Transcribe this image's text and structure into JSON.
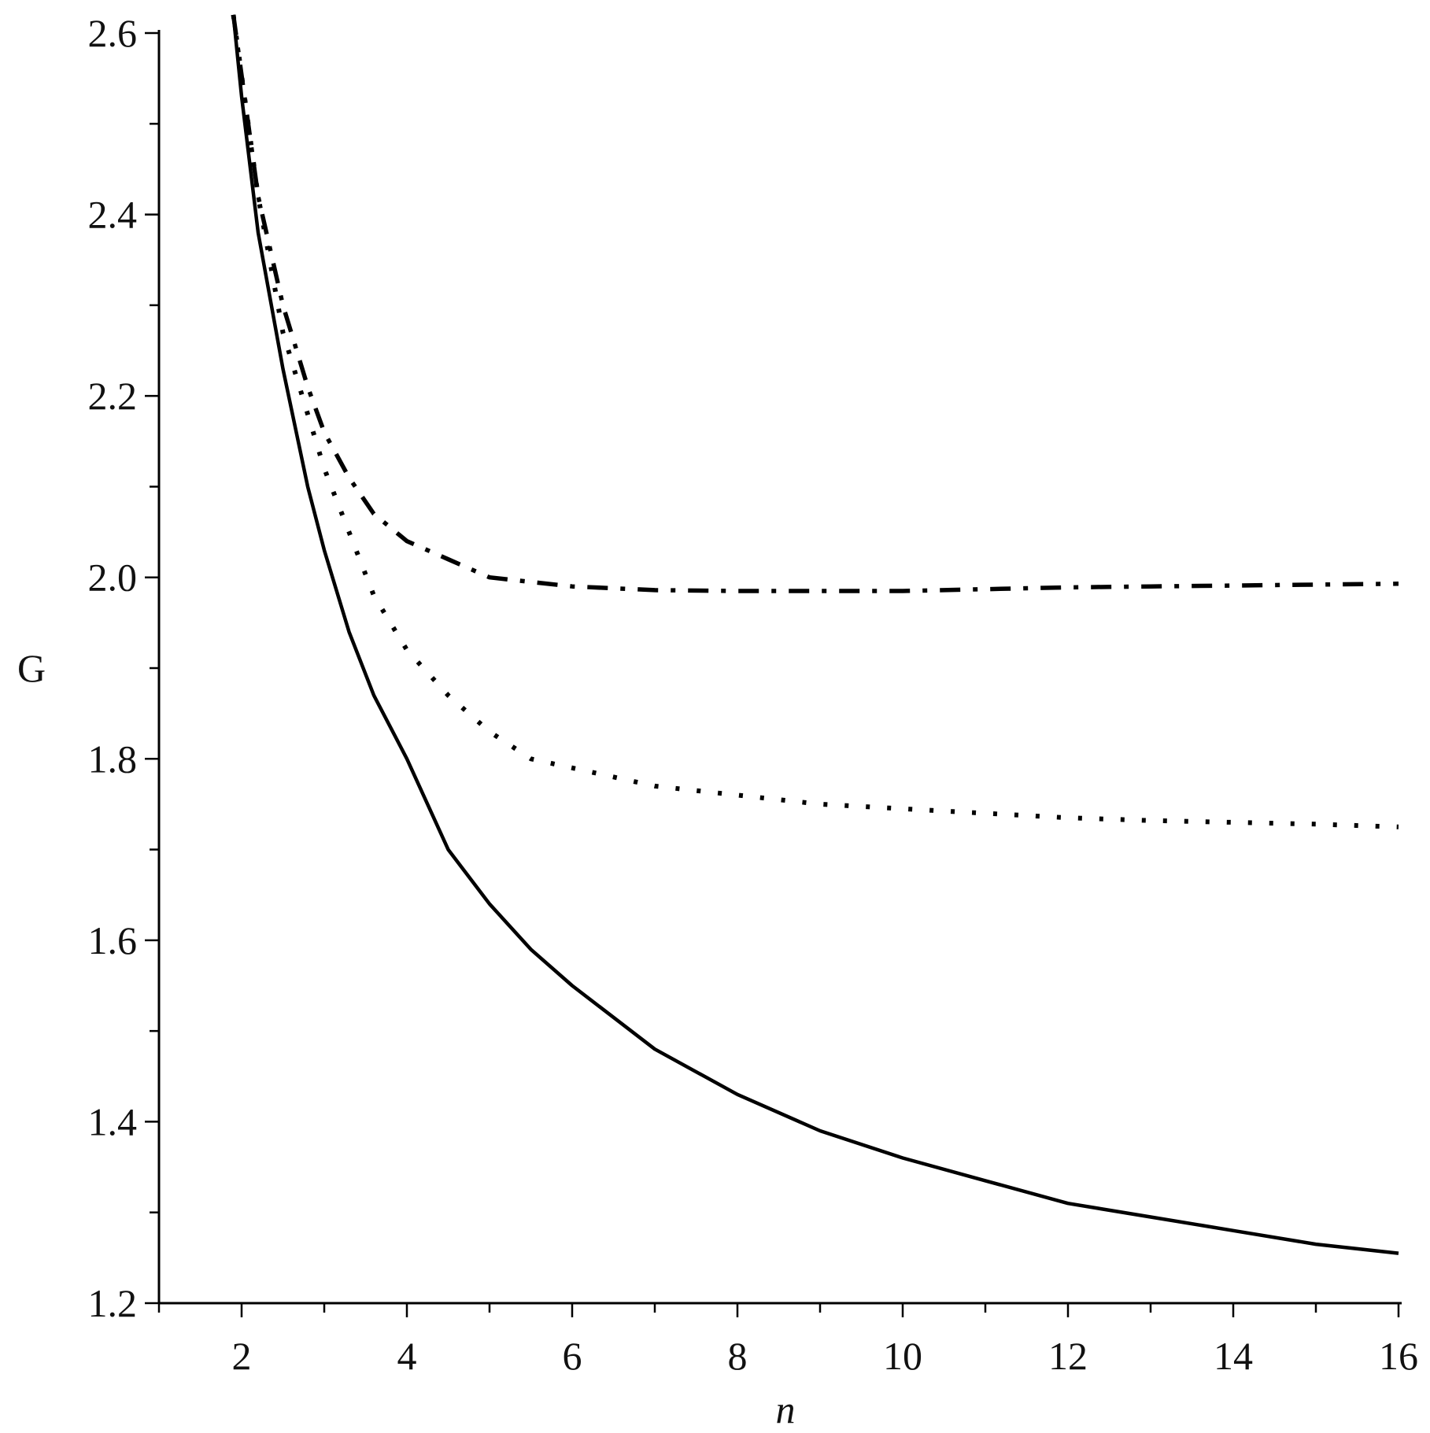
{
  "chart_data": {
    "type": "line",
    "title": "",
    "xlabel": "n",
    "ylabel": "G",
    "xlim": [
      1,
      16
    ],
    "ylim": [
      1.2,
      2.6
    ],
    "x_ticks": [
      "2",
      "4",
      "6",
      "8",
      "10",
      "12",
      "14",
      "16"
    ],
    "y_ticks": [
      "1.2",
      "1.4",
      "1.6",
      "1.8",
      "2.0",
      "2.2",
      "2.4",
      "2.6"
    ],
    "grid": false,
    "legend": "none",
    "colors": {
      "axis": "#000000",
      "line": "#000000",
      "tick_label": "#111111"
    },
    "series": [
      {
        "style": "solid",
        "x": [
          1.9,
          2.0,
          2.2,
          2.5,
          2.8,
          3.0,
          3.3,
          3.6,
          4.0,
          4.5,
          5.0,
          5.5,
          6.0,
          7.0,
          8.0,
          9.0,
          10.0,
          11.0,
          12.0,
          13.0,
          14.0,
          15.0,
          16.0
        ],
        "y": [
          2.62,
          2.53,
          2.38,
          2.23,
          2.1,
          2.03,
          1.94,
          1.87,
          1.8,
          1.7,
          1.64,
          1.59,
          1.55,
          1.48,
          1.43,
          1.39,
          1.36,
          1.335,
          1.31,
          1.295,
          1.28,
          1.265,
          1.255
        ]
      },
      {
        "style": "dotted",
        "x": [
          1.9,
          2.2,
          2.5,
          2.8,
          3.0,
          3.3,
          3.6,
          4.0,
          4.5,
          5.0,
          5.5,
          6.0,
          7.0,
          8.0,
          9.0,
          10.0,
          11.0,
          12.0,
          13.0,
          14.0,
          15.0,
          16.0
        ],
        "y": [
          2.62,
          2.42,
          2.27,
          2.18,
          2.12,
          2.05,
          1.98,
          1.92,
          1.87,
          1.83,
          1.8,
          1.79,
          1.77,
          1.76,
          1.75,
          1.745,
          1.74,
          1.735,
          1.732,
          1.73,
          1.728,
          1.725
        ]
      },
      {
        "style": "dashdot",
        "x": [
          1.9,
          2.2,
          2.5,
          2.8,
          3.0,
          3.3,
          3.6,
          4.0,
          4.5,
          5.0,
          5.5,
          6.0,
          7.0,
          8.0,
          9.0,
          10.0,
          11.0,
          12.0,
          13.0,
          14.0,
          15.0,
          16.0
        ],
        "y": [
          2.62,
          2.42,
          2.3,
          2.21,
          2.16,
          2.11,
          2.07,
          2.04,
          2.02,
          2.0,
          1.995,
          1.99,
          1.986,
          1.985,
          1.985,
          1.985,
          1.987,
          1.989,
          1.99,
          1.991,
          1.992,
          1.993
        ]
      }
    ]
  }
}
